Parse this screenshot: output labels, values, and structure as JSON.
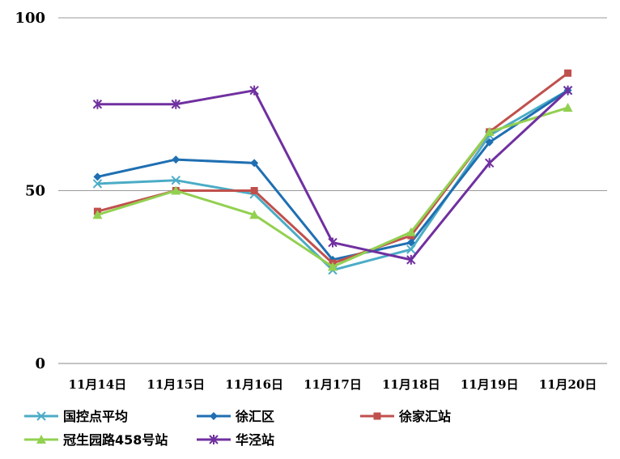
{
  "chart_data": {
    "type": "line",
    "title": "",
    "xlabel": "",
    "ylabel": "",
    "categories": [
      "11月14日",
      "11月15日",
      "11月16日",
      "11月17日",
      "11月18日",
      "11月19日",
      "11月20日"
    ],
    "yticks": [
      0,
      50,
      100
    ],
    "ylim": [
      0,
      100
    ],
    "grid": true,
    "legend": "bottom",
    "series": [
      {
        "name": "国控点平均",
        "color": "#4bacc6",
        "marker": "asterisk",
        "values": [
          52,
          53,
          49,
          27,
          33,
          66,
          79
        ]
      },
      {
        "name": "徐汇区",
        "color": "#1f6fb2",
        "marker": "diamond",
        "values": [
          54,
          59,
          58,
          30,
          35,
          64,
          79
        ]
      },
      {
        "name": "徐家汇站",
        "color": "#c0504d",
        "marker": "square",
        "values": [
          44,
          50,
          50,
          29,
          37,
          67,
          84
        ]
      },
      {
        "name": "冠生园路458号站",
        "color": "#92d050",
        "marker": "triangle",
        "values": [
          43,
          50,
          43,
          28,
          38,
          67,
          74
        ]
      },
      {
        "name": "华泾站",
        "color": "#7030a0",
        "marker": "star",
        "values": [
          75,
          75,
          79,
          35,
          30,
          58,
          79
        ]
      }
    ]
  }
}
